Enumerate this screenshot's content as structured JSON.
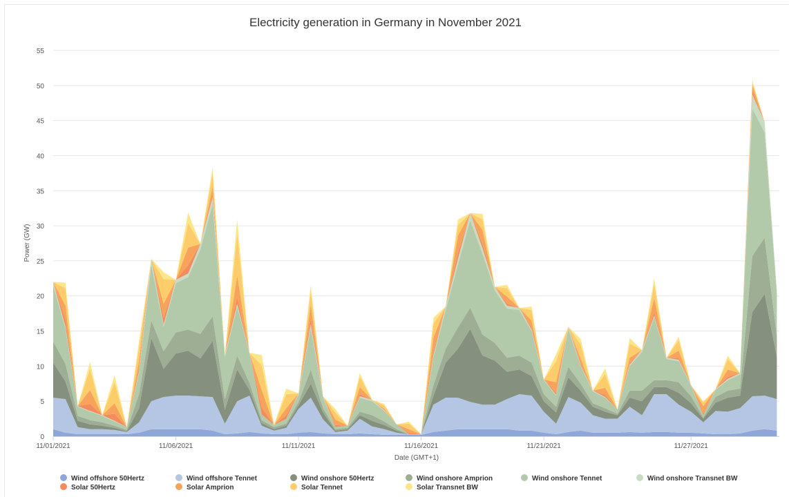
{
  "chart_data": {
    "type": "area",
    "stacked": true,
    "title": "Electricity generation in Germany in November 2021",
    "xlabel": "Date (GMT+1)",
    "ylabel": "Power (GW)",
    "ylim": [
      0,
      55
    ],
    "yticks": [
      0,
      5,
      10,
      15,
      20,
      25,
      30,
      35,
      40,
      45,
      50,
      55
    ],
    "grid": true,
    "legend_position": "bottom",
    "x_days": [
      1,
      1.5,
      2,
      2.5,
      3,
      3.5,
      4,
      4.5,
      5,
      5.5,
      6,
      6.5,
      7,
      7.5,
      8,
      8.5,
      9,
      9.5,
      10,
      10.5,
      11,
      11.5,
      12,
      12.5,
      13,
      13.5,
      14,
      14.5,
      15,
      15.5,
      16,
      16.5,
      17,
      17.5,
      18,
      18.5,
      19,
      19.5,
      20,
      20.5,
      21,
      21.5,
      22,
      22.5,
      23,
      23.5,
      24,
      24.5,
      25,
      25.5,
      26,
      26.5,
      27,
      27.5,
      28,
      28.5,
      29,
      29.5,
      30,
      30.5
    ],
    "xticks": [
      {
        "day": 1,
        "label": "11/01/2021"
      },
      {
        "day": 6,
        "label": "11/06/2021"
      },
      {
        "day": 11,
        "label": "11/11/2021"
      },
      {
        "day": 16,
        "label": "11/16/2021"
      },
      {
        "day": 21,
        "label": "11/21/2021"
      },
      {
        "day": 27,
        "label": "11/27/2021"
      }
    ],
    "series": [
      {
        "name": "Wind offshore 50Hertz",
        "color": "#8fa6d8",
        "values": [
          1,
          0.5,
          0.3,
          0.3,
          0.3,
          0.3,
          0.3,
          0.5,
          1,
          1,
          1,
          1,
          1,
          0.8,
          0.3,
          0.4,
          0.6,
          0.4,
          0.3,
          0.3,
          0.5,
          0.6,
          0.4,
          0.3,
          0.3,
          0.4,
          0.3,
          0.2,
          0.2,
          0.2,
          0.2,
          0.6,
          0.8,
          1,
          1,
          1,
          1,
          1,
          0.8,
          0.8,
          0.5,
          0.3,
          0.6,
          0.8,
          0.5,
          0.5,
          0.5,
          0.6,
          0.5,
          0.6,
          0.6,
          0.5,
          0.5,
          0.4,
          0.3,
          0.3,
          0.4,
          0.8,
          1,
          0.8
        ]
      },
      {
        "name": "Wind offshore Tennet",
        "color": "#b4c6e4",
        "values": [
          4.5,
          4.8,
          1,
          0.7,
          0.7,
          0.6,
          0.3,
          1.5,
          4,
          4.6,
          4.8,
          4.8,
          4.7,
          4.8,
          1.5,
          4.6,
          5.2,
          1.1,
          0.5,
          0.9,
          3.4,
          4.9,
          2,
          0.3,
          0.5,
          2.1,
          1.1,
          0.8,
          0.3,
          0.1,
          0.1,
          3.9,
          4.7,
          4.5,
          3.9,
          3.5,
          3.5,
          4.3,
          5.2,
          5,
          3,
          1.5,
          5,
          4,
          2.5,
          2,
          2,
          3.6,
          2.5,
          5.4,
          5.4,
          4,
          3,
          1.6,
          3.3,
          3.2,
          3.6,
          4.9,
          4.8,
          4.5
        ]
      },
      {
        "name": "Wind onshore 50Hertz",
        "color": "#85917e",
        "values": [
          5,
          2.5,
          0.9,
          0.7,
          0.5,
          0.3,
          0.1,
          2,
          9,
          4,
          6,
          6.4,
          5.4,
          8,
          2,
          4.5,
          0.8,
          0.4,
          0.2,
          0.3,
          0.5,
          2,
          1,
          0.2,
          0.2,
          0.5,
          0.8,
          0.6,
          0.3,
          0,
          0,
          1.3,
          5,
          7,
          10.4,
          7,
          6.3,
          3.9,
          3.5,
          2.8,
          1.5,
          1.6,
          2.8,
          1.7,
          1.2,
          1,
          0.5,
          1.3,
          2,
          1,
          1,
          1.7,
          1.2,
          0.5,
          1.2,
          2,
          1.8,
          12,
          14.5,
          6
        ]
      },
      {
        "name": "Wind onshore Amprion",
        "color": "#9eae95",
        "values": [
          3,
          2.5,
          0.7,
          0.6,
          0.5,
          0.3,
          0.2,
          2,
          2.5,
          2.5,
          3,
          3,
          3.5,
          3.5,
          1.5,
          2,
          1,
          0.4,
          0.3,
          0.3,
          0.5,
          2,
          0.6,
          0.2,
          0.2,
          0.5,
          0.8,
          0.5,
          0.2,
          0,
          0,
          1.5,
          2,
          3,
          3,
          3,
          2.5,
          2,
          2,
          1.9,
          1,
          0.8,
          1.5,
          1,
          0.5,
          0.5,
          0.2,
          1,
          1.5,
          1,
          1,
          1.5,
          1,
          0.2,
          0.8,
          1,
          1,
          8,
          8,
          3
        ]
      },
      {
        "name": "Wind onshore Tennet",
        "color": "#b2c9aa",
        "values": [
          8,
          5,
          1.3,
          1.2,
          0.9,
          0.6,
          0.4,
          3,
          8,
          3.5,
          7,
          7.5,
          12,
          16,
          6,
          7,
          4.2,
          0.8,
          0.3,
          0.7,
          1,
          6,
          1.5,
          0.3,
          0.3,
          2,
          2,
          1.5,
          0.7,
          0,
          0,
          4,
          5.5,
          9,
          12.5,
          11.5,
          7.5,
          7,
          6.5,
          4.5,
          2,
          1.6,
          5.4,
          2.5,
          1.7,
          1.5,
          0.6,
          3.5,
          5.5,
          9,
          3,
          3,
          1.5,
          0.3,
          1,
          1.5,
          2,
          21,
          15,
          6
        ]
      },
      {
        "name": "Wind onshore Transnet BW",
        "color": "#c9dcc3",
        "values": [
          0.5,
          0.3,
          0.1,
          0.1,
          0.1,
          0.1,
          0,
          0.3,
          0.8,
          0.3,
          0.5,
          0.5,
          0.8,
          1,
          0.3,
          0.4,
          0.1,
          0,
          0,
          0,
          0.2,
          0.5,
          0.2,
          0,
          0,
          0.2,
          0.2,
          0.1,
          0,
          0,
          0,
          0.3,
          0.5,
          0.8,
          1,
          0.8,
          0.5,
          0.4,
          0.3,
          0.2,
          0.1,
          0.1,
          0.3,
          0.1,
          0.1,
          0.1,
          0,
          0.2,
          0.3,
          0.2,
          0.2,
          0.2,
          0.1,
          0,
          0.1,
          0.2,
          0.2,
          2,
          1.5,
          0.5
        ]
      },
      {
        "name": "Solar 50Hertz",
        "color": "#f28c5c",
        "values": [
          0,
          1,
          0,
          1,
          0,
          1,
          0,
          0.5,
          0,
          1,
          0,
          1.2,
          0,
          0.5,
          0,
          1,
          0,
          1,
          0,
          0.5,
          0,
          0.8,
          0,
          0.3,
          0,
          0.3,
          0,
          0,
          0,
          0.2,
          0,
          0.5,
          0,
          0.8,
          0,
          0.6,
          0,
          0.3,
          0,
          0.3,
          0,
          0.3,
          0,
          0.2,
          0,
          0.3,
          0,
          0.2,
          0,
          0.5,
          0,
          0.3,
          0,
          0.3,
          0,
          0.3,
          0,
          0.5,
          0,
          0
        ]
      },
      {
        "name": "Solar Amprion",
        "color": "#f7a35c",
        "values": [
          0,
          2,
          0,
          2,
          0,
          1.5,
          0,
          1,
          0,
          2,
          0,
          2.5,
          0,
          1,
          0,
          3,
          0,
          2.5,
          0,
          1,
          0,
          2,
          0,
          0.8,
          0,
          1,
          0,
          0.2,
          0,
          0.5,
          0,
          2,
          0,
          2.5,
          0,
          2,
          0,
          1,
          0,
          1,
          0,
          1.5,
          0,
          0.8,
          0,
          1,
          0,
          0.8,
          0,
          2,
          0,
          1,
          0,
          1,
          0,
          1,
          0,
          0.8,
          0,
          0
        ]
      },
      {
        "name": "Solar Tennet",
        "color": "#fccd6a",
        "values": [
          0,
          2.5,
          0,
          3,
          0,
          3,
          0,
          2,
          0,
          3.5,
          0,
          3.5,
          0,
          2,
          0,
          6,
          0,
          3.5,
          0,
          2,
          0,
          2,
          0,
          1,
          0,
          1.5,
          0,
          0.5,
          0,
          0.8,
          0,
          2,
          0,
          1.5,
          0,
          1.5,
          0,
          1.2,
          0,
          1.5,
          0,
          3,
          0,
          2,
          0,
          2,
          0,
          2,
          0,
          2,
          0,
          1.5,
          0,
          0.5,
          0,
          1.5,
          0,
          0.5,
          0,
          0
        ]
      },
      {
        "name": "Solar Transnet BW",
        "color": "#fde68a",
        "values": [
          0,
          0.8,
          0,
          1,
          0,
          1,
          0,
          0.8,
          0,
          1,
          0,
          1.5,
          0,
          0.8,
          0,
          2,
          0,
          1.5,
          0,
          0.8,
          0,
          0.8,
          0,
          0.5,
          0,
          0.5,
          0,
          0.2,
          0,
          0.3,
          0,
          0.8,
          0,
          0.8,
          0,
          0.8,
          0,
          0.5,
          0,
          0.5,
          0,
          1,
          0,
          0.8,
          0,
          0.8,
          0,
          0.8,
          0,
          0.8,
          0,
          0.5,
          0,
          0.2,
          0,
          0.5,
          0,
          0.3,
          0,
          0
        ]
      }
    ]
  }
}
